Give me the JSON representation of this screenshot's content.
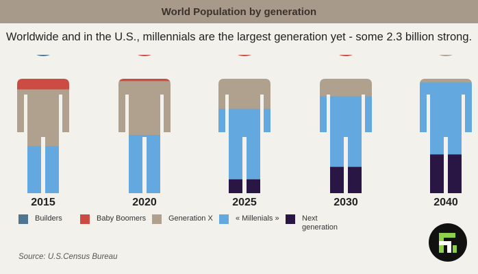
{
  "header": {
    "title": "World Population by generation"
  },
  "subtitle": "Worldwide and in the U.S., millennials are the largest generation yet - some 2.3 billion strong.",
  "source": "Source: U.S.Census Bureau",
  "colors": {
    "Builders": "#4e7591",
    "Baby Boomers": "#cc4b43",
    "Generation X": "#b0a18f",
    "Millenials": "#63a8de",
    "Next generation": "#2a1645"
  },
  "chart_data": {
    "type": "stacked-pictogram",
    "title": "World Population by generation",
    "unit": "share of figure height, %",
    "categories": [
      "2015",
      "2020",
      "2025",
      "2030",
      "2040"
    ],
    "series": [
      {
        "name": "Builders",
        "values": [
          2,
          0,
          0,
          0,
          0
        ]
      },
      {
        "name": "Baby Boomers",
        "values": [
          23,
          19,
          8,
          6,
          0
        ]
      },
      {
        "name": "Generation X",
        "values": [
          41,
          39,
          31,
          24,
          20
        ]
      },
      {
        "name": "Millenials",
        "values": [
          34,
          42,
          51,
          51,
          52
        ]
      },
      {
        "name": "Next generation",
        "values": [
          0,
          0,
          10,
          19,
          28
        ]
      }
    ],
    "legend": [
      {
        "key": "Builders",
        "label": "Builders"
      },
      {
        "key": "Baby Boomers",
        "label": "Baby Boomers"
      },
      {
        "key": "Generation X",
        "label": "Generation X"
      },
      {
        "key": "Millenials",
        "label": "« Millenials »"
      },
      {
        "key": "Next generation",
        "label": "Next\ngeneration"
      }
    ]
  }
}
